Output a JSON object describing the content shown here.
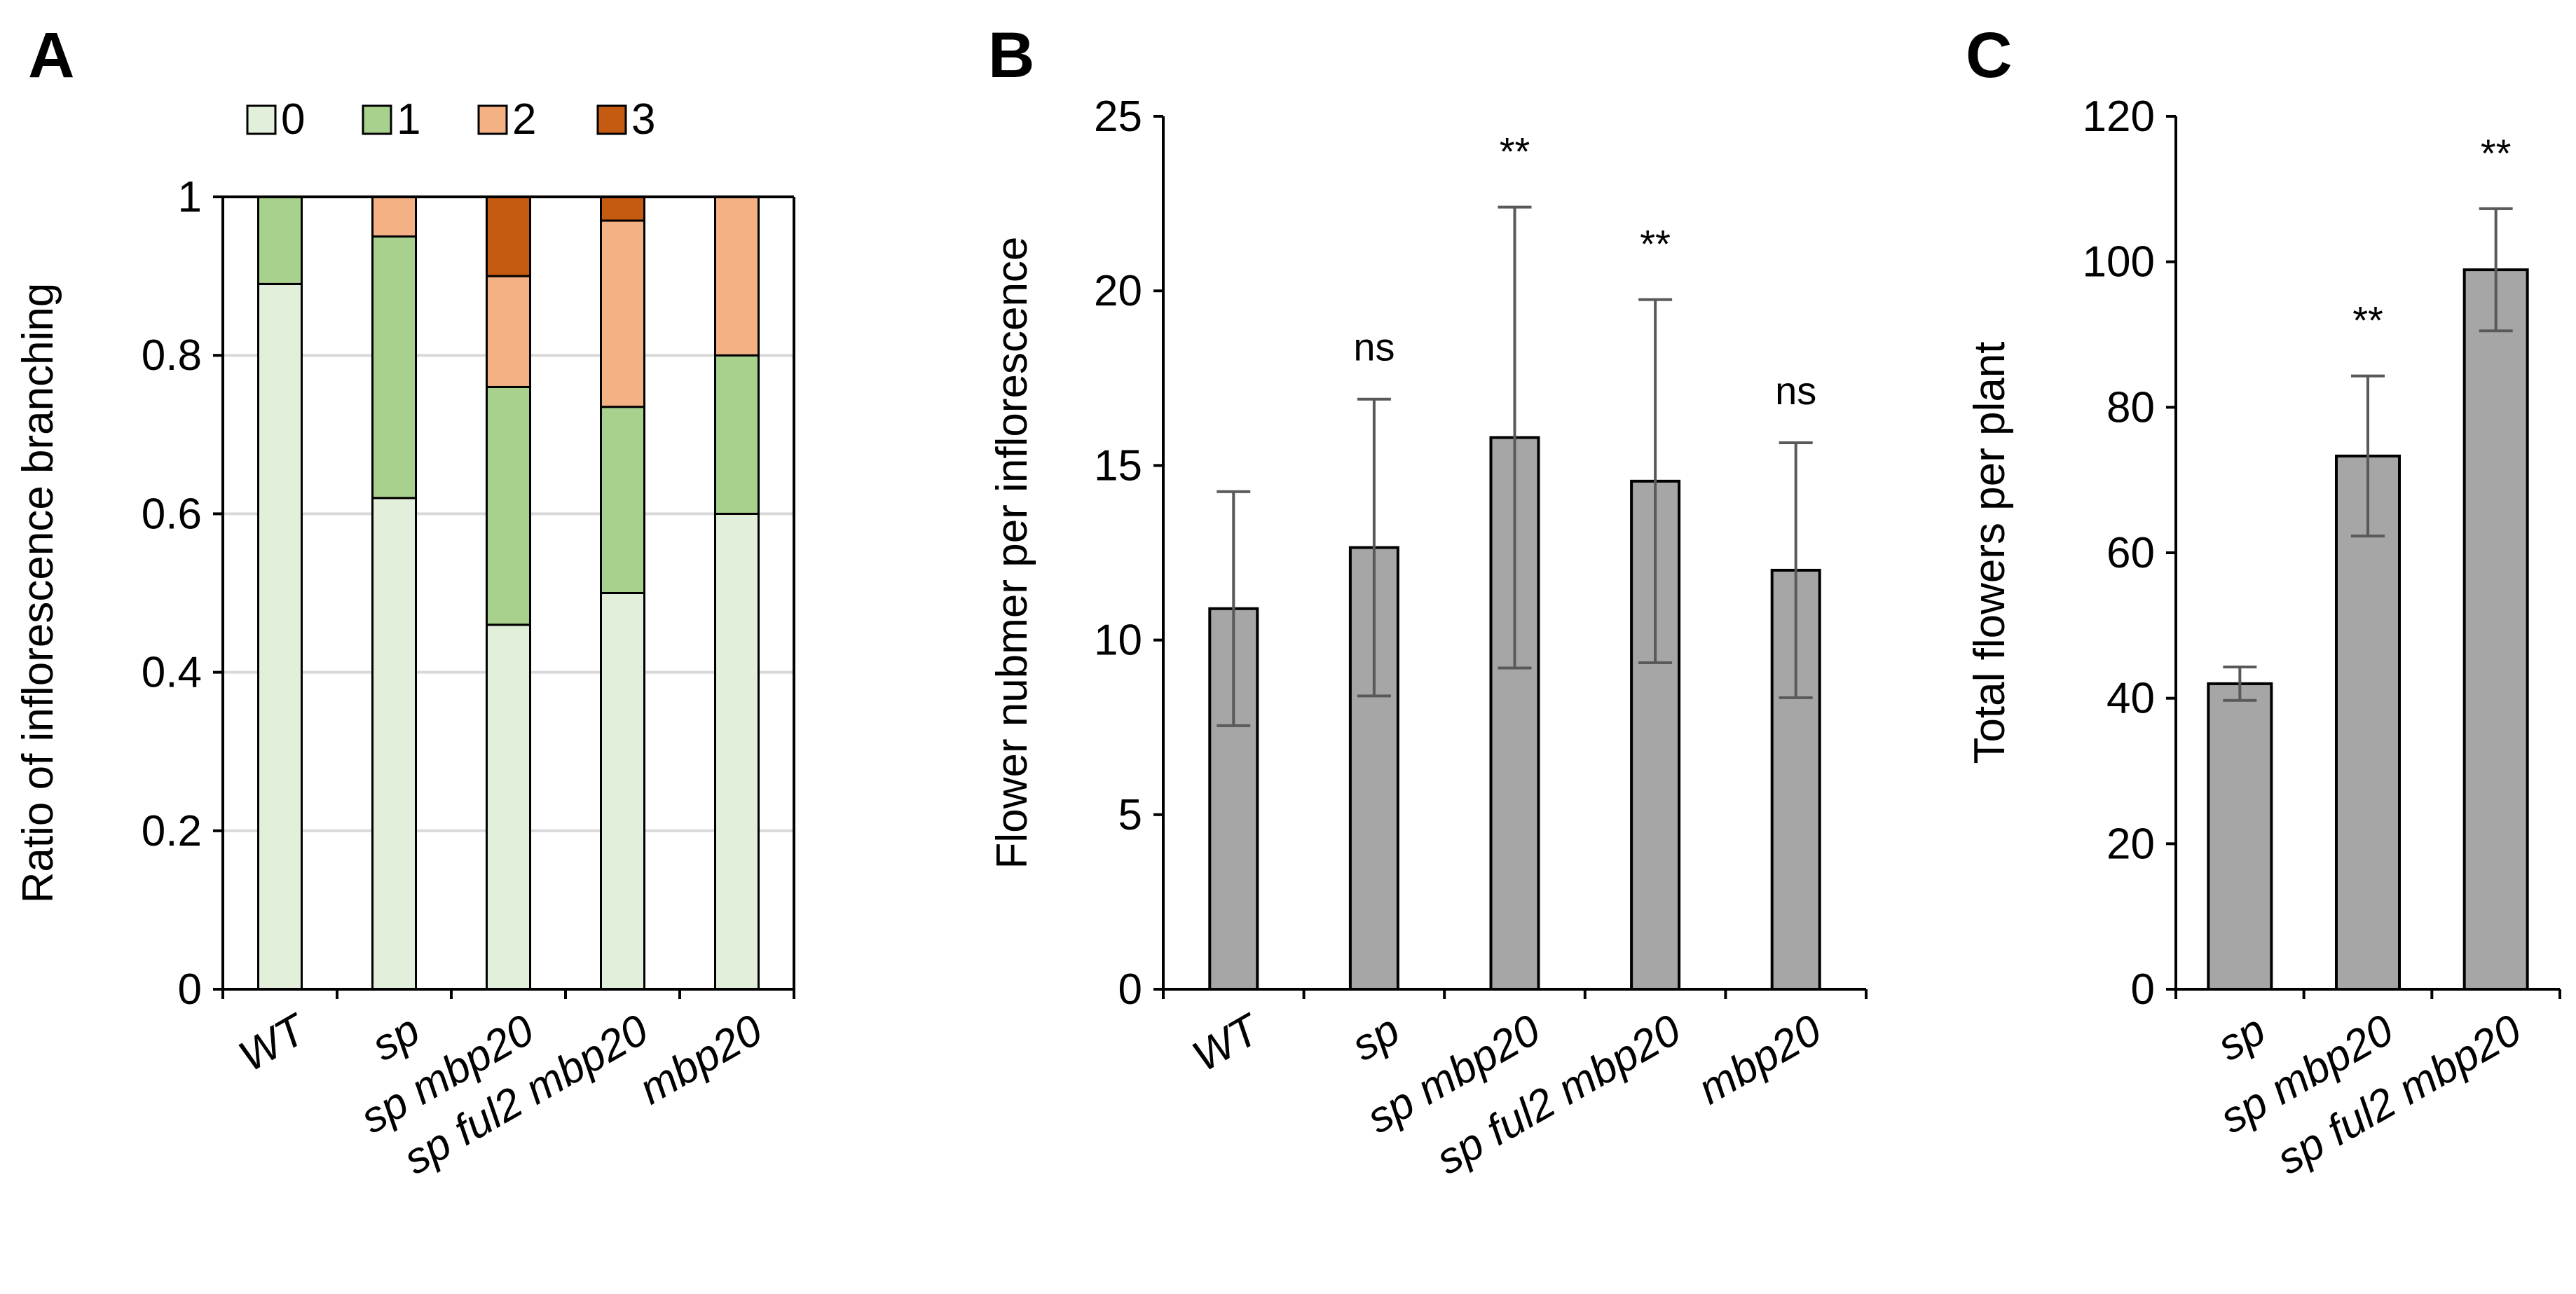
{
  "chart_data": [
    {
      "panel": "A",
      "type": "bar",
      "stacked": true,
      "ylabel": "Ratio of inflorescence branching",
      "ylim": [
        0,
        1
      ],
      "yticks": [
        "0",
        "0.2",
        "0.4",
        "0.6",
        "0.8",
        "1"
      ],
      "categories": [
        "WT",
        "sp",
        "sp mbp20",
        "sp ful2 mbp20",
        "mbp20"
      ],
      "legend_position": "top",
      "series": [
        {
          "name": "0",
          "color": "#e2efda",
          "values": [
            0.89,
            0.62,
            0.46,
            0.5,
            0.6
          ]
        },
        {
          "name": "1",
          "color": "#a9d18e",
          "values": [
            0.11,
            0.33,
            0.3,
            0.235,
            0.2
          ]
        },
        {
          "name": "2",
          "color": "#f4b183",
          "values": [
            0,
            0.05,
            0.14,
            0.235,
            0.2
          ]
        },
        {
          "name": "3",
          "color": "#c55a11",
          "values": [
            0,
            0,
            0.1,
            0.03,
            0
          ]
        }
      ]
    },
    {
      "panel": "B",
      "type": "bar",
      "ylabel": "Flower nubmer per inflorescence",
      "ylim": [
        0,
        25
      ],
      "yticks": [
        "0",
        "5",
        "10",
        "15",
        "20",
        "25"
      ],
      "categories": [
        "WT",
        "sp",
        "sp mbp20",
        "sp ful2 mbp20",
        "mbp20"
      ],
      "values": [
        10.9,
        12.65,
        15.8,
        14.55,
        12.0
      ],
      "errors": [
        3.35,
        4.25,
        6.6,
        5.2,
        3.65
      ],
      "annotations": [
        "",
        "ns",
        "**",
        "**",
        "ns"
      ],
      "color": "#a6a6a6"
    },
    {
      "panel": "C",
      "type": "bar",
      "ylabel": "Total flowers per plant",
      "ylim": [
        0,
        120
      ],
      "yticks": [
        "0",
        "20",
        "40",
        "60",
        "80",
        "100",
        "120"
      ],
      "categories": [
        "sp",
        "sp mbp20",
        "sp ful2 mbp20"
      ],
      "values": [
        42,
        73.3,
        98.9
      ],
      "errors": [
        2.3,
        11.0,
        8.4
      ],
      "annotations": [
        "",
        "**",
        "**"
      ],
      "color": "#a6a6a6"
    }
  ]
}
